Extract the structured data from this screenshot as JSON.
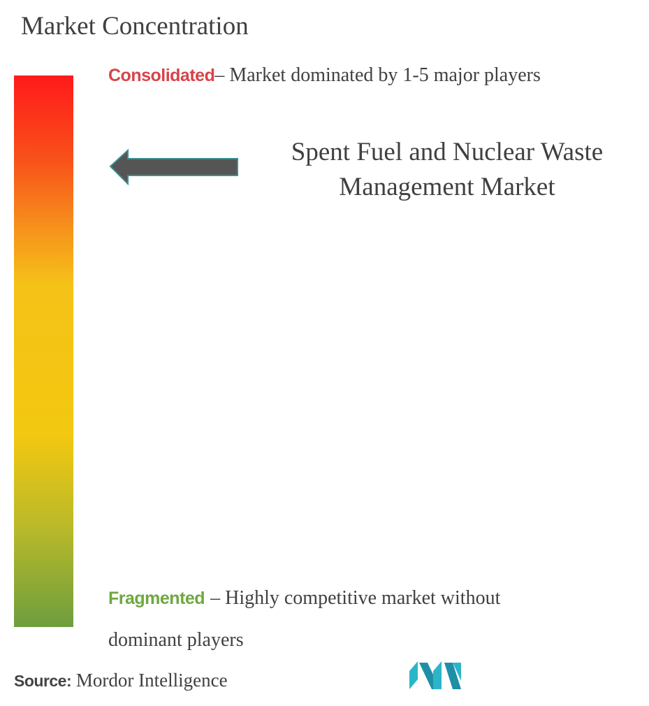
{
  "title": "Market Concentration",
  "consolidated": {
    "label": "Consolidated",
    "description": "– Market dominated by 1-5 major players"
  },
  "market": "Spent Fuel and Nuclear Waste Management Market",
  "fragmented": {
    "label": "Fragmented",
    "description": "– Highly competitive market without dominant players"
  },
  "source": {
    "label": "Source:",
    "text": "Mordor Intelligence"
  }
}
